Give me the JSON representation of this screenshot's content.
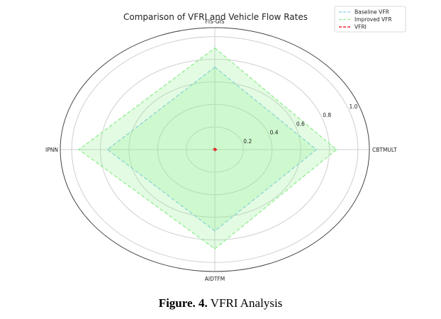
{
  "chart_data": {
    "type": "radar",
    "title": "Comparison of VFRI and Vehicle Flow Rates",
    "axes": [
      "FIS-GIS",
      "CBTMULT",
      "AIDTFM",
      "IPNN"
    ],
    "rlim": [
      0,
      1.08
    ],
    "radial_ticks": [
      0.2,
      0.4,
      0.6,
      0.8,
      1.0
    ],
    "radial_tick_labels": [
      "0.2",
      "0.4",
      "0.6",
      "0.8",
      "1.0"
    ],
    "grid": true,
    "legend_position": "top-right",
    "series": [
      {
        "name": "Baseline VFR",
        "values": [
          0.73,
          0.71,
          0.72,
          0.75
        ],
        "color": "#87ceeb",
        "fill": "#90ee90",
        "fill_opacity": 0.25,
        "line_style": "dashed"
      },
      {
        "name": "Improved VFR",
        "values": [
          0.9,
          0.85,
          0.88,
          0.95
        ],
        "color": "#90ee90",
        "fill": "#90ee90",
        "fill_opacity": 0.25,
        "line_style": "dashed"
      },
      {
        "name": "VFRI",
        "values": [
          0.01,
          0.01,
          0.01,
          0.01
        ],
        "color": "#e8000b",
        "line_style": "dashed"
      }
    ]
  },
  "caption": {
    "label": "Figure. 4.",
    "text": " VFRI Analysis"
  }
}
